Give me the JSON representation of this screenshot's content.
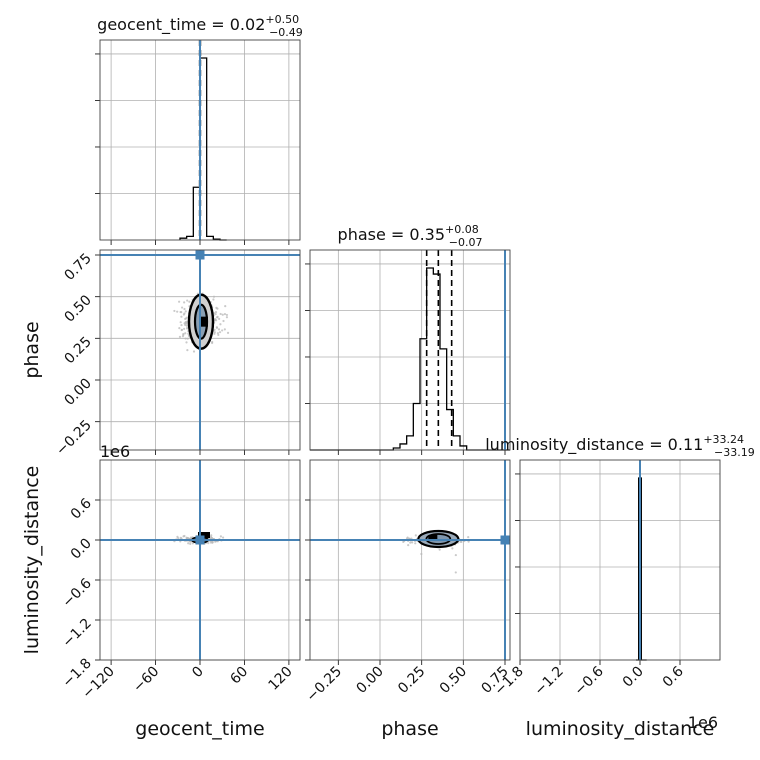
{
  "chart_data": {
    "type": "corner",
    "parameters": [
      "geocent_time",
      "phase",
      "luminosity_distance"
    ],
    "axis_labels": {
      "geocent_time": "geocent_time",
      "phase": "phase",
      "luminosity_distance": "luminosity_distance"
    },
    "titles": {
      "geocent_time": {
        "name": "geocent_time",
        "median": "0.02",
        "plus": "+0.50",
        "minus": "−0.49"
      },
      "phase": {
        "name": "phase",
        "median": "0.35",
        "plus": "+0.08",
        "minus": "−0.07"
      },
      "luminosity_distance": {
        "name": "luminosity_distance",
        "median": "0.11",
        "plus": "+33.24",
        "minus": "−33.19"
      }
    },
    "ranges": {
      "geocent_time": [
        -135,
        135
      ],
      "phase": [
        -0.42,
        0.78
      ],
      "luminosity_distance": [
        -1800000,
        1200000
      ]
    },
    "ticks": {
      "geocent_time": [
        -120,
        -60,
        0,
        60,
        120
      ],
      "phase": [
        -0.25,
        0.0,
        0.25,
        0.5,
        0.75
      ],
      "luminosity_distance": [
        -1800000,
        -1200000,
        -600000,
        0,
        600000
      ]
    },
    "tick_labels": {
      "geocent_time": [
        "−120",
        "−60",
        "0",
        "60",
        "120"
      ],
      "phase": [
        "−0.25",
        "0.00",
        "0.25",
        "0.50",
        "0.75"
      ],
      "luminosity_distance": [
        "−1.8",
        "−1.2",
        "−0.6",
        "0.0",
        "0.6"
      ]
    },
    "offset_text": "1e6",
    "truths": {
      "geocent_time": 0,
      "phase": 0.75,
      "luminosity_distance": 0
    },
    "quantiles": {
      "geocent_time": [
        -0.47,
        0.02,
        0.52
      ],
      "phase": [
        0.28,
        0.35,
        0.43
      ],
      "luminosity_distance": [
        -33.08,
        0.11,
        33.35
      ]
    },
    "histograms": {
      "geocent_time": {
        "edges": [
          -27,
          -18,
          -9,
          0,
          9,
          18,
          27,
          36
        ],
        "values": [
          0.01,
          0.02,
          0.29,
          1.0,
          0.02,
          0.005,
          0.0
        ]
      },
      "phase": {
        "edges": [
          -0.42,
          0.08,
          0.12,
          0.16,
          0.2,
          0.24,
          0.28,
          0.32,
          0.36,
          0.4,
          0.44,
          0.48,
          0.52,
          0.78
        ],
        "values": [
          0.0,
          0.01,
          0.03,
          0.07,
          0.23,
          0.55,
          0.9,
          0.87,
          0.5,
          0.2,
          0.07,
          0.02,
          0.0
        ]
      },
      "luminosity_distance": {
        "edges": [
          -60000,
          -20000,
          20000,
          60000,
          100000
        ],
        "values": [
          0.0,
          1.0,
          0.0,
          0.0
        ]
      }
    },
    "scatter_samples": {
      "phase_vs_geocent_time": {
        "geocent_time_spread": 12,
        "phase_center": 0.35,
        "phase_spread": 0.06
      }
    },
    "grid": true
  }
}
